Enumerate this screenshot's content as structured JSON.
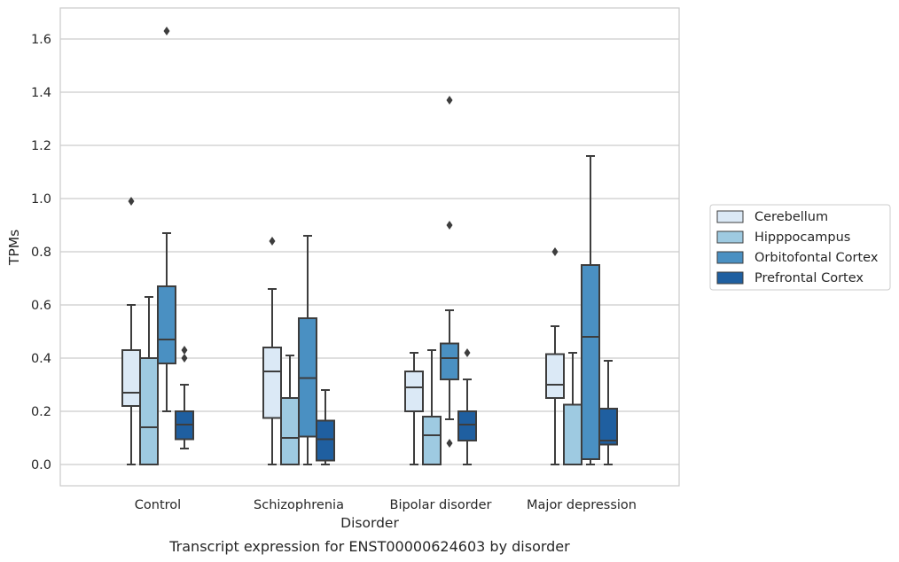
{
  "chart_data": {
    "type": "box",
    "title": "",
    "caption": "Transcript expression for ENST00000624603 by disorder",
    "xlabel": "Disorder",
    "ylabel": "TPMs",
    "ylim": [
      -0.08,
      1.72
    ],
    "yticks": [
      0.0,
      0.2,
      0.4,
      0.6,
      0.8,
      1.0,
      1.2,
      1.4,
      1.6
    ],
    "ytick_labels": [
      "0.0",
      "0.2",
      "0.4",
      "0.6",
      "0.8",
      "1.0",
      "1.2",
      "1.4",
      "1.6"
    ],
    "grid": "horizontal",
    "legend_placement": "outside-right",
    "categories": [
      "Control",
      "Schizophrenia",
      "Bipolar disorder",
      "Major depression"
    ],
    "series": [
      {
        "name": "Cerebellum",
        "color": "#dbe9f6",
        "boxes": [
          {
            "whislo": 0.0,
            "q1": 0.22,
            "med": 0.27,
            "q3": 0.43,
            "whishi": 0.6,
            "fliers": [
              0.99
            ]
          },
          {
            "whislo": 0.0,
            "q1": 0.175,
            "med": 0.35,
            "q3": 0.44,
            "whishi": 0.66,
            "fliers": [
              0.84
            ]
          },
          {
            "whislo": 0.0,
            "q1": 0.2,
            "med": 0.29,
            "q3": 0.35,
            "whishi": 0.42,
            "fliers": []
          },
          {
            "whislo": 0.0,
            "q1": 0.25,
            "med": 0.3,
            "q3": 0.415,
            "whishi": 0.52,
            "fliers": [
              0.8
            ]
          }
        ]
      },
      {
        "name": "Hipppocampus",
        "color": "#9ecae1",
        "boxes": [
          {
            "whislo": 0.0,
            "q1": 0.0,
            "med": 0.14,
            "q3": 0.4,
            "whishi": 0.63,
            "fliers": []
          },
          {
            "whislo": 0.0,
            "q1": 0.0,
            "med": 0.1,
            "q3": 0.25,
            "whishi": 0.41,
            "fliers": []
          },
          {
            "whislo": 0.0,
            "q1": 0.0,
            "med": 0.11,
            "q3": 0.18,
            "whishi": 0.43,
            "fliers": []
          },
          {
            "whislo": 0.0,
            "q1": 0.0,
            "med": 0.0,
            "q3": 0.225,
            "whishi": 0.42,
            "fliers": []
          }
        ]
      },
      {
        "name": "Orbitofontal Cortex",
        "color": "#4a90c2",
        "boxes": [
          {
            "whislo": 0.2,
            "q1": 0.38,
            "med": 0.47,
            "q3": 0.67,
            "whishi": 0.87,
            "fliers": [
              1.63
            ]
          },
          {
            "whislo": 0.0,
            "q1": 0.105,
            "med": 0.325,
            "q3": 0.55,
            "whishi": 0.86,
            "fliers": []
          },
          {
            "whislo": 0.17,
            "q1": 0.32,
            "med": 0.4,
            "q3": 0.455,
            "whishi": 0.58,
            "fliers": [
              1.37,
              0.9,
              0.08
            ]
          },
          {
            "whislo": 0.0,
            "q1": 0.02,
            "med": 0.48,
            "q3": 0.75,
            "whishi": 1.16,
            "fliers": []
          }
        ]
      },
      {
        "name": "Prefrontal Cortex",
        "color": "#1f5fa0",
        "boxes": [
          {
            "whislo": 0.06,
            "q1": 0.095,
            "med": 0.15,
            "q3": 0.2,
            "whishi": 0.3,
            "fliers": [
              0.43,
              0.4
            ]
          },
          {
            "whislo": 0.0,
            "q1": 0.015,
            "med": 0.095,
            "q3": 0.165,
            "whishi": 0.28,
            "fliers": []
          },
          {
            "whislo": 0.0,
            "q1": 0.09,
            "med": 0.15,
            "q3": 0.2,
            "whishi": 0.32,
            "fliers": [
              0.42
            ]
          },
          {
            "whislo": 0.0,
            "q1": 0.075,
            "med": 0.09,
            "q3": 0.21,
            "whishi": 0.39,
            "fliers": []
          }
        ]
      }
    ]
  }
}
